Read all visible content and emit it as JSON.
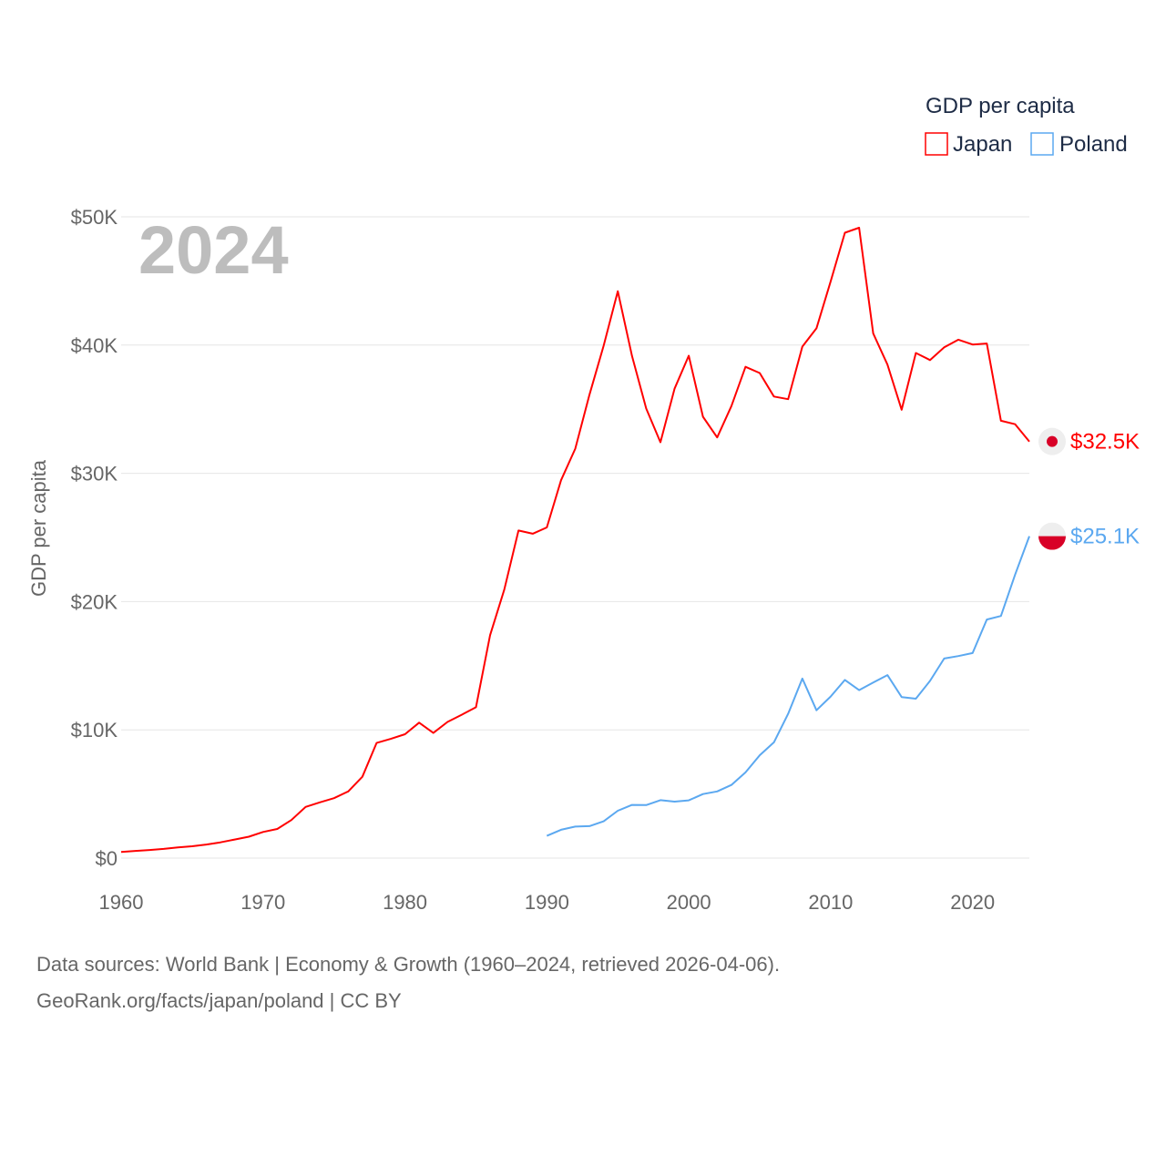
{
  "chart_data": {
    "type": "line",
    "title": "",
    "year_label": "2024",
    "xlabel": "",
    "ylabel": "GDP per capita",
    "xlim": [
      1960,
      2024
    ],
    "ylim": [
      0,
      50000
    ],
    "x_ticks": [
      "1960",
      "1970",
      "1980",
      "1990",
      "2000",
      "2010",
      "2020"
    ],
    "y_ticks": [
      {
        "value": 0,
        "label": "$0"
      },
      {
        "value": 10000,
        "label": "$10K"
      },
      {
        "value": 20000,
        "label": "$20K"
      },
      {
        "value": 30000,
        "label": "$30K"
      },
      {
        "value": 40000,
        "label": "$40K"
      },
      {
        "value": 50000,
        "label": "$50K"
      }
    ],
    "grid": true,
    "legend": {
      "title": "GDP per capita",
      "placement": "top-right"
    },
    "series": [
      {
        "name": "Japan",
        "color": "#ff0000",
        "end_label": "$32.5K",
        "start_year": 1960,
        "values": [
          480,
          560,
          630,
          720,
          840,
          920,
          1060,
          1230,
          1450,
          1670,
          2040,
          2270,
          2970,
          3990,
          4350,
          4670,
          5200,
          6340,
          8980,
          9300,
          9660,
          10560,
          9760,
          10620,
          11180,
          11760,
          17380,
          20940,
          25540,
          25290,
          25780,
          29460,
          31920,
          36130,
          39960,
          44200,
          39150,
          35050,
          32420,
          36600,
          39170,
          34410,
          32800,
          35240,
          38300,
          37820,
          35990,
          35780,
          39880,
          41310,
          44970,
          48760,
          49150,
          40900,
          38480,
          34960,
          39380,
          38830,
          39820,
          40420,
          40040,
          40120,
          34100,
          33830,
          32480
        ]
      },
      {
        "name": "Poland",
        "color": "#5ba8f0",
        "end_label": "$25.1K",
        "start_year": 1990,
        "values": [
          1730,
          2210,
          2460,
          2490,
          2870,
          3690,
          4150,
          4130,
          4520,
          4400,
          4500,
          4990,
          5200,
          5700,
          6680,
          8020,
          9030,
          11250,
          14000,
          11530,
          12600,
          13890,
          13100,
          13690,
          14270,
          12560,
          12430,
          13820,
          15560,
          15750,
          15990,
          18600,
          18880,
          22110,
          25100
        ]
      }
    ]
  },
  "footer": {
    "line1": "Data sources: World Bank | Economy & Growth (1960–2024, retrieved 2026-04-06).",
    "line2": "GeoRank.org/facts/japan/poland | CC BY"
  }
}
